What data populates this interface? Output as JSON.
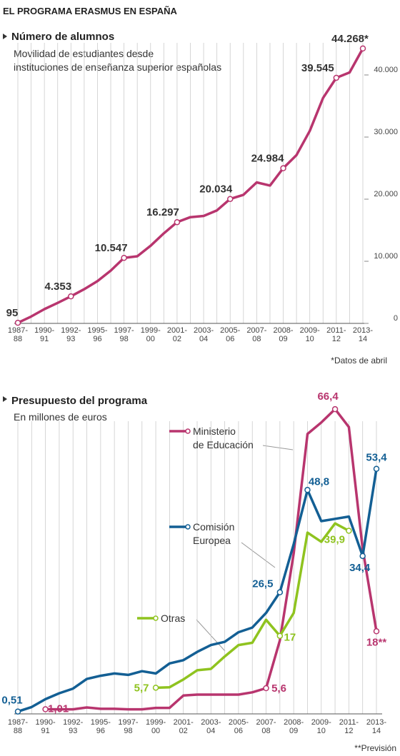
{
  "title": "EL PROGRAMA ERASMUS EN ESPAÑA",
  "chart_data": [
    {
      "type": "line",
      "title": "Número de alumnos",
      "subtitle": "Movilidad de estudiantes desde instituciones de enseñanza superior españolas",
      "note": "*Datos de abril",
      "categories": [
        "1987-88",
        null,
        "1990-91",
        null,
        "1992-93",
        null,
        "1995-96",
        null,
        "1997-98",
        null,
        "1999-00",
        null,
        "2001-02",
        null,
        "2003-04",
        null,
        "2005-06",
        null,
        "2007-08",
        null,
        "2008-09",
        null,
        "2009-10",
        null,
        "2011-12",
        null,
        "2013-14"
      ],
      "series": [
        {
          "name": null,
          "color": "#b8356e",
          "values": [
            95,
            1100,
            2300,
            3300,
            4353,
            5500,
            6800,
            8500,
            10547,
            10800,
            12500,
            14500,
            16297,
            17100,
            17300,
            18200,
            20034,
            20700,
            22700,
            22200,
            24984,
            27100,
            31000,
            36300,
            39545,
            40400,
            44268
          ],
          "value_labels": [
            "95",
            null,
            null,
            null,
            "4.353",
            null,
            null,
            null,
            "10.547",
            null,
            null,
            null,
            "16.297",
            null,
            null,
            null,
            "20.034",
            null,
            null,
            null,
            "24.984",
            null,
            null,
            null,
            "39.545",
            null,
            "44.268*"
          ]
        }
      ],
      "ylim": [
        0,
        45000
      ],
      "yticks": [
        0,
        {
          "value": 10000,
          "label": "10.000"
        },
        {
          "value": 20000,
          "label": "20.000"
        },
        {
          "value": 30000,
          "label": "30.000"
        },
        {
          "value": 40000,
          "label": "40.000"
        }
      ]
    },
    {
      "type": "line",
      "title": "Presupuesto del programa",
      "subtitle": "En millones de euros",
      "note": "**Previsión",
      "categories": [
        "1987-88",
        null,
        "1990-91",
        null,
        "1992-93",
        null,
        "1995-96",
        null,
        "1997-98",
        null,
        "1999-00",
        null,
        "2001-02",
        null,
        "2003-04",
        null,
        "2005-06",
        null,
        "2007-08",
        null,
        "2008-09",
        null,
        "2009-10",
        null,
        "2011-12",
        null,
        "2013-14"
      ],
      "series": [
        {
          "name": "Ministerio de Educación",
          "color": "#b8356e",
          "values": [
            null,
            null,
            1.01,
            1.0,
            1.0,
            1.4,
            1.1,
            1.1,
            1.0,
            1.0,
            1.3,
            1.3,
            4.0,
            4.2,
            4.2,
            4.2,
            4.2,
            4.7,
            5.6,
            16,
            35,
            61,
            63.5,
            66.4,
            62.5,
            36,
            18
          ],
          "value_labels": [
            null,
            null,
            "1,01",
            null,
            null,
            null,
            null,
            null,
            null,
            null,
            null,
            null,
            null,
            null,
            null,
            null,
            null,
            null,
            "5,6",
            null,
            null,
            null,
            null,
            "66,4",
            null,
            null,
            "18**"
          ]
        },
        {
          "name": "Comisión Europea",
          "color": "#135f94",
          "values": [
            0.51,
            1.5,
            3.2,
            4.5,
            5.5,
            7.6,
            8.3,
            8.8,
            8.5,
            9.3,
            8.8,
            11,
            11.7,
            13.5,
            15,
            15.7,
            17.8,
            18.8,
            22,
            26.5,
            37,
            48.8,
            42,
            42.5,
            43,
            34.4,
            53.4
          ],
          "value_labels": [
            "0,51",
            null,
            null,
            null,
            null,
            null,
            null,
            null,
            null,
            null,
            null,
            null,
            null,
            null,
            null,
            null,
            null,
            null,
            null,
            "26,5",
            null,
            "48,8",
            null,
            null,
            null,
            "34,4",
            "53,4"
          ]
        },
        {
          "name": "Otras",
          "color": "#8fc31f",
          "values": [
            null,
            null,
            null,
            null,
            null,
            null,
            null,
            null,
            null,
            null,
            5.7,
            5.8,
            7.5,
            9.5,
            9.8,
            12.5,
            15,
            15.5,
            20.5,
            17,
            22,
            39.5,
            37.5,
            41.5,
            39.9,
            null,
            null
          ],
          "value_labels": [
            null,
            null,
            null,
            null,
            null,
            null,
            null,
            null,
            null,
            null,
            "5,7",
            null,
            null,
            null,
            null,
            null,
            null,
            null,
            null,
            "17",
            null,
            null,
            null,
            null,
            "39,9",
            null,
            null
          ]
        }
      ],
      "ylim": [
        0,
        70
      ]
    }
  ]
}
